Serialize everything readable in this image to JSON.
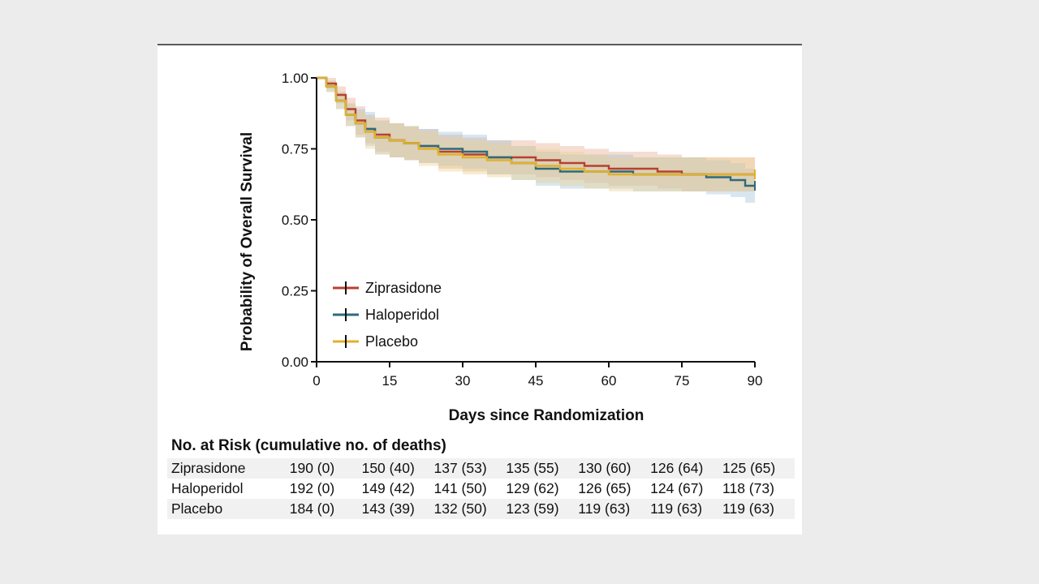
{
  "chart_data": {
    "type": "line",
    "subtype": "kaplan-meier",
    "xlabel": "Days since Randomization",
    "ylabel": "Probability of Overall Survival",
    "xlim": [
      0,
      90
    ],
    "ylim": [
      0,
      1
    ],
    "xticks": [
      "0",
      "15",
      "30",
      "45",
      "60",
      "75",
      "90"
    ],
    "yticks": [
      "0.00",
      "0.25",
      "0.50",
      "0.75",
      "1.00"
    ],
    "grid": false,
    "legend": "lower-left",
    "series": [
      {
        "name": "Ziprasidone",
        "color": "#b8402f",
        "band_color": "#e6a98c",
        "x": [
          0,
          2,
          4,
          6,
          8,
          10,
          12,
          15,
          18,
          21,
          25,
          30,
          35,
          40,
          45,
          50,
          55,
          60,
          65,
          70,
          75,
          80,
          85,
          90
        ],
        "y": [
          1.0,
          0.98,
          0.94,
          0.89,
          0.85,
          0.82,
          0.8,
          0.78,
          0.77,
          0.76,
          0.74,
          0.73,
          0.72,
          0.72,
          0.71,
          0.7,
          0.69,
          0.68,
          0.68,
          0.67,
          0.66,
          0.66,
          0.66,
          0.66
        ],
        "ci_lower": [
          1.0,
          0.96,
          0.91,
          0.85,
          0.8,
          0.77,
          0.74,
          0.72,
          0.71,
          0.7,
          0.68,
          0.67,
          0.66,
          0.66,
          0.65,
          0.64,
          0.63,
          0.62,
          0.62,
          0.61,
          0.6,
          0.6,
          0.6,
          0.6
        ],
        "ci_upper": [
          1.0,
          1.0,
          0.97,
          0.93,
          0.9,
          0.87,
          0.86,
          0.84,
          0.83,
          0.82,
          0.8,
          0.79,
          0.78,
          0.78,
          0.77,
          0.76,
          0.75,
          0.74,
          0.74,
          0.73,
          0.72,
          0.72,
          0.72,
          0.72
        ]
      },
      {
        "name": "Haloperidol",
        "color": "#2e6b7a",
        "band_color": "#9fc0d6",
        "x": [
          0,
          2,
          4,
          6,
          8,
          10,
          12,
          15,
          18,
          21,
          25,
          30,
          35,
          40,
          45,
          50,
          55,
          60,
          65,
          70,
          75,
          80,
          85,
          88,
          90
        ],
        "y": [
          1.0,
          0.97,
          0.92,
          0.87,
          0.84,
          0.82,
          0.79,
          0.78,
          0.77,
          0.76,
          0.75,
          0.74,
          0.72,
          0.7,
          0.68,
          0.67,
          0.67,
          0.67,
          0.66,
          0.66,
          0.66,
          0.65,
          0.64,
          0.62,
          0.62
        ],
        "ci_lower": [
          1.0,
          0.95,
          0.89,
          0.83,
          0.79,
          0.76,
          0.73,
          0.72,
          0.71,
          0.7,
          0.69,
          0.68,
          0.66,
          0.64,
          0.62,
          0.61,
          0.61,
          0.61,
          0.6,
          0.6,
          0.6,
          0.59,
          0.58,
          0.56,
          0.56
        ],
        "ci_upper": [
          1.0,
          0.99,
          0.95,
          0.91,
          0.89,
          0.88,
          0.85,
          0.84,
          0.83,
          0.82,
          0.81,
          0.8,
          0.78,
          0.76,
          0.74,
          0.73,
          0.73,
          0.73,
          0.72,
          0.72,
          0.72,
          0.71,
          0.7,
          0.68,
          0.68
        ]
      },
      {
        "name": "Placebo",
        "color": "#e2b12a",
        "band_color": "#ecd08c",
        "x": [
          0,
          2,
          4,
          6,
          8,
          10,
          12,
          15,
          18,
          21,
          25,
          30,
          35,
          40,
          45,
          50,
          55,
          60,
          65,
          70,
          75,
          80,
          85,
          90
        ],
        "y": [
          1.0,
          0.97,
          0.92,
          0.87,
          0.84,
          0.81,
          0.79,
          0.78,
          0.77,
          0.75,
          0.73,
          0.72,
          0.71,
          0.7,
          0.69,
          0.68,
          0.67,
          0.66,
          0.66,
          0.66,
          0.66,
          0.66,
          0.66,
          0.66
        ],
        "ci_lower": [
          1.0,
          0.95,
          0.89,
          0.83,
          0.79,
          0.75,
          0.73,
          0.72,
          0.71,
          0.69,
          0.67,
          0.66,
          0.65,
          0.64,
          0.63,
          0.62,
          0.61,
          0.6,
          0.6,
          0.6,
          0.6,
          0.6,
          0.6,
          0.6
        ],
        "ci_upper": [
          1.0,
          0.99,
          0.95,
          0.91,
          0.88,
          0.86,
          0.85,
          0.84,
          0.83,
          0.81,
          0.79,
          0.78,
          0.77,
          0.76,
          0.75,
          0.74,
          0.73,
          0.72,
          0.72,
          0.72,
          0.72,
          0.72,
          0.72,
          0.72
        ]
      }
    ]
  },
  "risk_table": {
    "title": "No. at Risk (cumulative no. of deaths)",
    "rows": [
      {
        "name": "Ziprasidone",
        "values": [
          "190 (0)",
          "150 (40)",
          "137 (53)",
          "135 (55)",
          "130 (60)",
          "126 (64)",
          "125 (65)"
        ]
      },
      {
        "name": "Haloperidol",
        "values": [
          "192 (0)",
          "149 (42)",
          "141 (50)",
          "129 (62)",
          "126 (65)",
          "124 (67)",
          "118 (73)"
        ]
      },
      {
        "name": "Placebo",
        "values": [
          "184 (0)",
          "143 (39)",
          "132 (50)",
          "123 (59)",
          "119 (63)",
          "119 (63)",
          "119 (63)"
        ]
      }
    ]
  }
}
